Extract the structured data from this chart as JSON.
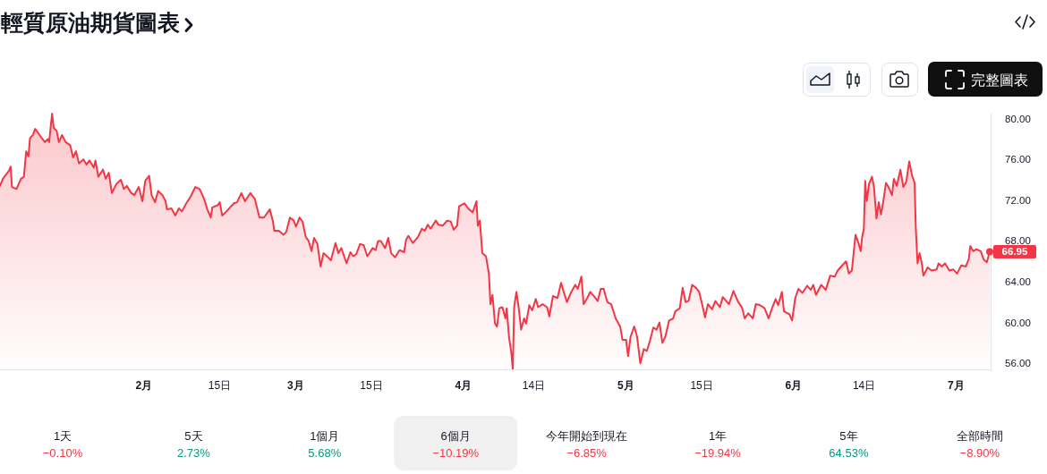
{
  "chart_data": [
    {
      "type": "area",
      "title": "輕質原油期貨圖表",
      "x": [
        "--01-05T10:00",
        "--01-05T23:00",
        "--01-07T02:00",
        "--01-07T09:00",
        "--01-07T15:00",
        "--01-08T11:00",
        "--01-09T07:00",
        "--01-09T20:00",
        "--01-10T06:00",
        "--01-10T16:00",
        "--01-10T23:00",
        "--01-11T12:00",
        "--01-11T22:00",
        "--01-12T14:00",
        "--01-13T03:00",
        "--01-13T17:00",
        "--01-14T06:00",
        "--01-14T12:00",
        "--01-14T19:00",
        "--01-15T01:00",
        "--01-15T08:00",
        "--01-15T21:00",
        "--01-16T07:00",
        "--01-16T21:00",
        "--01-17T13:00",
        "--01-18T09:00",
        "--01-18T22:00",
        "--01-19T11:00",
        "--01-20T00:00",
        "--01-20T20:00",
        "--01-21T09:00",
        "--01-21T23:00",
        "--01-22T18:00",
        "--01-23T01:00",
        "--01-23T14:00",
        "--01-24T10:00",
        "--01-24T23:00",
        "--01-25T12:00",
        "--01-26T02:00",
        "--01-26T22:00",
        "--01-27T18:00",
        "--01-28T07:00",
        "--01-28T20:00",
        "--01-29T16:00",
        "--01-30T05:00",
        "--01-31T01:00",
        "--01-31T17:00",
        "--02-01T06:00",
        "--02-01T23:00",
        "--02-02T10:00",
        "--02-03T01:00",
        "--02-03T15:00",
        "--02-04T10:00",
        "--02-05T00:00",
        "--02-05T06:00",
        "--02-06T02:00",
        "--02-06T19:00",
        "--02-07T11:00",
        "--02-08T00:00",
        "--02-08T20:00",
        "--02-09T16:00",
        "--02-10T12:00",
        "--02-11T07:00",
        "--02-12T03:00",
        "--02-12T17:00",
        "--02-13T08:00",
        "--02-13T15:00",
        "--02-14T15:00",
        "--02-15T00:00",
        "--02-15T11:00",
        "--02-16T06:00",
        "--02-17T02:00",
        "--02-17T15:00",
        "--02-18T05:00",
        "--02-19T00:00",
        "--02-19T16:00",
        "--02-20T16:00",
        "--02-21T12:00",
        "--02-22T08:00",
        "--02-23T04:00",
        "--02-24T06:00",
        "--02-24T19:00",
        "--02-25T02:00",
        "--02-25T22:00",
        "--02-26T18:00",
        "--02-27T07:00",
        "--02-27T23:00",
        "--02-28T16:00",
        "--03-01T02:00",
        "--03-01T18:00",
        "--03-02T07:00",
        "--03-02T21:00",
        "--03-03T10:00",
        "--03-03T23:00",
        "--03-04T10:00",
        "--03-05T01:00",
        "--03-05T15:00",
        "--03-06T04:00",
        "--03-07T00:00",
        "--03-07T13:00",
        "--03-08T09:00",
        "--03-08T22:00",
        "--03-09T11:00",
        "--03-10T10:00",
        "--03-11T03:00",
        "--03-11T16:00",
        "--03-12T05:00",
        "--03-12T22:00",
        "--03-13T14:00",
        "--03-14T06:00",
        "--03-15T06:00",
        "--03-15T19:00",
        "--03-16T06:00",
        "--03-16T18:00",
        "--03-17T13:00",
        "--03-18T03:00",
        "--03-18T16:00",
        "--03-19T09:00",
        "--03-20T05:00",
        "--03-21T01:00",
        "--03-21T10:00",
        "--03-21T20:00",
        "--03-22T16:00",
        "--03-23T15:00",
        "--03-24T08:00",
        "--03-24T21:00",
        "--03-25T10:00",
        "--03-25T23:00",
        "--03-26T22:00",
        "--03-27T09:00",
        "--03-28T04:00",
        "--03-29T00:00",
        "--03-29T16:00",
        "--03-30T05:00",
        "--03-30T20:00",
        "--03-31T05:00",
        "--04-01T05:00",
        "--04-01T21:00",
        "--04-02T17:00",
        "--04-03T10:00",
        "--04-03T16:00",
        "--04-04T01:00",
        "--04-04T12:00",
        "--04-05T04:00",
        "--04-05T17:00",
        "--04-06T00:00",
        "--04-06T09:00",
        "--04-06T20:00",
        "--04-07T05:00",
        "--04-07T15:00",
        "--04-08T05:00",
        "--04-08T18:00",
        "--04-09T00:00",
        "--04-09T10:00",
        "--04-09T20:00",
        "--04-10T03:00",
        "--04-10T09:00",
        "--04-10T19:00",
        "--04-11T05:00",
        "--04-11T16:00",
        "--04-12T05:00",
        "--04-12T14:00",
        "--04-13T04:00",
        "--04-13T17:00",
        "--04-14T09:00",
        "--04-14T19:00",
        "--04-15T15:00",
        "--04-16T11:00",
        "--04-16T21:00",
        "--04-17T13:00",
        "--04-18T09:00",
        "--04-19T01:00",
        "--04-19T14:00",
        "--04-20T03:00",
        "--04-20T20:00",
        "--04-21T16:00",
        "--04-22T03:00",
        "--04-22T19:00",
        "--04-23T05:00",
        "--04-23T21:00",
        "--04-24T10:00",
        "--04-25T02:00",
        "--04-25T19:00",
        "--04-26T09:00",
        "--04-26T22:00",
        "--04-27T14:00",
        "--04-28T07:00",
        "--04-29T03:00",
        "--04-29T23:00",
        "--04-30T09:00",
        "--05-01T01:00",
        "--05-01T10:00",
        "--05-01T21:00",
        "--05-02T13:00",
        "--05-03T02:00",
        "--05-03T16:00",
        "--05-04T08:00",
        "--05-04T21:00",
        "--05-05T11:00",
        "--05-06T02:00",
        "--05-06T16:00",
        "--05-07T05:00",
        "--05-07T18:00",
        "--05-08T07:00",
        "--05-09T00:00",
        "--05-09T18:00",
        "--05-10T03:00",
        "--05-10T23:00",
        "--05-11T12:00",
        "--05-12T01:00",
        "--05-12T14:00",
        "--05-13T06:00",
        "--05-13T23:00",
        "--05-14T13:00",
        "--05-15T02:00",
        "--05-15T15:00",
        "--05-16T04:00",
        "--05-16T22:00",
        "--05-17T13:00",
        "--05-18T09:00",
        "--05-18T22:00",
        "--05-20T01:00",
        "--05-20T21:00",
        "--05-21T16:00",
        "--05-22T12:00",
        "--05-22T23:00",
        "--05-23T15:00",
        "--05-24T11:00",
        "--05-25T00:00",
        "--05-25T19:00",
        "--05-26T15:00",
        "--05-27T09:00",
        "--05-28T00:00",
        "--05-28T16:00",
        "--05-29T03:00",
        "--05-29T20:00",
        "--05-30T05:00",
        "--05-31T05:00",
        "--05-31T17:00",
        "--06-01T07:00",
        "--06-01T21:00",
        "--06-02T15:00",
        "--06-03T12:00",
        "--06-04T04:00",
        "--06-04T15:00",
        "--06-05T03:00",
        "--06-06T02:00",
        "--06-06T22:00",
        "--06-07T18:00",
        "--06-08T14:00",
        "--06-09T03:00",
        "--06-09T23:00",
        "--06-10T16:00",
        "--06-11T05:00",
        "--06-11T18:00",
        "--06-12T10:00",
        "--06-12T23:00",
        "--06-13T09:00",
        "--06-13T15:00",
        "--06-13T23:00",
        "--06-14T05:00",
        "--06-14T12:00",
        "--06-14T22:00",
        "--06-15T11:00",
        "--06-15T20:00",
        "--06-16T07:00",
        "--06-16T17:00",
        "--06-17T03:00",
        "--06-17T12:00",
        "--06-18T01:00",
        "--06-18T12:00",
        "--06-19T04:00",
        "--06-19T12:00",
        "--06-20T01:00",
        "--06-20T17:00",
        "--06-21T06:00",
        "--06-21T19:00",
        "--06-22T08:00",
        "--06-22T21:00",
        "--06-23T08:00",
        "--06-23T13:00",
        "--06-23T21:00",
        "--06-24T06:00",
        "--06-24T16:00",
        "--06-24T23:00",
        "--06-25T18:00",
        "--06-26T11:00",
        "--06-27T10:00",
        "--06-27T18:00",
        "--06-28T09:00",
        "--06-28T23:00",
        "--06-29T18:00",
        "--06-30T12:00",
        "--07-01T04:00",
        "--07-01T23:00",
        "--07-02T19:00",
        "--07-03T08:00",
        "--07-03T15:00",
        "--07-04T04:00",
        "--07-04T18:00",
        "--07-05T13:00",
        "--07-06T02:00",
        "--07-06T16:00",
        "--07-07T05:00"
      ],
      "series": [
        {
          "color": "#f23645",
          "values": [
            73.4,
            74.1,
            74.9,
            75.3,
            73.3,
            73.1,
            74.1,
            74.3,
            76.8,
            76.3,
            78.1,
            78.4,
            79.0,
            78.5,
            78.1,
            77.7,
            78.0,
            77.7,
            79.3,
            80.5,
            79.1,
            78.8,
            77.7,
            78.4,
            77.7,
            77.4,
            76.2,
            76.8,
            75.6,
            76.0,
            75.5,
            75.9,
            75.2,
            75.9,
            74.3,
            75.0,
            74.1,
            74.7,
            72.7,
            73.6,
            74.0,
            73.1,
            73.4,
            72.7,
            72.5,
            73.3,
            71.9,
            73.9,
            74.4,
            72.5,
            71.8,
            72.9,
            72.5,
            71.9,
            71.1,
            71.2,
            70.5,
            71.2,
            70.9,
            71.7,
            72.4,
            73.3,
            73.1,
            72.1,
            71.1,
            70.3,
            71.3,
            71.5,
            71.8,
            70.5,
            70.9,
            71.4,
            71.7,
            71.8,
            72.7,
            71.9,
            72.7,
            72.1,
            70.3,
            70.3,
            71.1,
            70.0,
            69.0,
            69.0,
            68.6,
            68.9,
            70.3,
            70.0,
            69.4,
            70.3,
            69.9,
            68.4,
            68.0,
            67.0,
            68.3,
            67.7,
            65.5,
            66.8,
            66.4,
            66.1,
            67.8,
            66.8,
            67.3,
            65.8,
            66.9,
            66.5,
            66.7,
            67.7,
            67.6,
            66.5,
            67.3,
            67.1,
            68.0,
            68.0,
            67.3,
            68.3,
            66.8,
            66.4,
            67.1,
            66.9,
            68.1,
            68.5,
            67.8,
            68.4,
            69.2,
            69.0,
            69.6,
            69.2,
            70.0,
            69.6,
            69.5,
            70.0,
            69.9,
            69.1,
            69.5,
            71.4,
            71.7,
            71.2,
            70.8,
            71.9,
            69.5,
            70.0,
            66.8,
            66.5,
            64.8,
            61.8,
            62.7,
            59.9,
            59.6,
            61.4,
            61.5,
            60.4,
            61.4,
            58.6,
            57.1,
            55.4,
            61.5,
            63.0,
            61.5,
            59.3,
            60.4,
            59.9,
            61.7,
            61.2,
            62.3,
            61.5,
            61.8,
            61.5,
            60.6,
            62.6,
            62.4,
            63.9,
            62.9,
            62.0,
            62.9,
            63.7,
            63.3,
            64.5,
            61.8,
            62.4,
            63.0,
            62.6,
            62.1,
            63.3,
            63.3,
            62.0,
            61.8,
            60.4,
            59.6,
            58.3,
            58.3,
            56.7,
            58.6,
            59.6,
            58.6,
            56.0,
            57.4,
            57.2,
            58.2,
            59.5,
            59.3,
            60.0,
            58.0,
            58.6,
            60.2,
            60.4,
            61.1,
            61.4,
            63.4,
            62.0,
            62.1,
            63.7,
            63.4,
            63.0,
            61.8,
            60.5,
            61.8,
            61.3,
            62.1,
            61.5,
            62.5,
            61.8,
            63.1,
            62.1,
            61.4,
            60.4,
            60.9,
            60.4,
            61.8,
            61.7,
            61.4,
            60.4,
            61.4,
            62.3,
            61.7,
            63.0,
            61.1,
            60.8,
            60.2,
            62.4,
            63.3,
            62.9,
            63.6,
            63.2,
            63.7,
            62.7,
            63.7,
            63.2,
            64.6,
            64.5,
            65.1,
            65.6,
            66.0,
            64.8,
            65.1,
            68.6,
            67.8,
            67.0,
            68.3,
            69.2,
            73.9,
            71.9,
            73.6,
            74.3,
            73.3,
            70.2,
            71.8,
            70.6,
            71.7,
            73.7,
            73.3,
            72.5,
            74.1,
            73.4,
            75.0,
            73.3,
            73.8,
            75.8,
            74.4,
            73.7,
            69.5,
            65.8,
            66.8,
            65.8,
            64.6,
            65.4,
            65.1,
            65.2,
            65.8,
            65.5,
            65.8,
            65.1,
            65.2,
            64.8,
            65.6,
            65.5,
            66.2,
            67.5,
            67.0,
            67.2,
            67.0,
            66.2,
            65.9,
            66.95
          ]
        }
      ],
      "xlim": [
        "--01-05T10:00",
        "--07-07T05:00"
      ],
      "xticks": [
        {
          "value": "--02-01",
          "label": "2月"
        },
        {
          "value": "--02-15",
          "label": "15日"
        },
        {
          "value": "--03-01",
          "label": "3月"
        },
        {
          "value": "--03-15",
          "label": "15日"
        },
        {
          "value": "--04-01",
          "label": "4月"
        },
        {
          "value": "--04-14",
          "label": "14日"
        },
        {
          "value": "--05-01",
          "label": "5月"
        },
        {
          "value": "--05-15",
          "label": "15日"
        },
        {
          "value": "--06-01",
          "label": "6月"
        },
        {
          "value": "--06-14",
          "label": "14日"
        },
        {
          "value": "--07-01",
          "label": "7月"
        }
      ],
      "ylim": [
        55.4,
        80.5
      ],
      "yticks": [
        {
          "value": 56,
          "label": "56.00"
        },
        {
          "value": 60,
          "label": "60.00"
        },
        {
          "value": 64,
          "label": "64.00"
        },
        {
          "value": 68,
          "label": "68.00"
        },
        {
          "value": 72,
          "label": "72.00"
        },
        {
          "value": 76,
          "label": "76.00"
        },
        {
          "value": 80,
          "label": "80.00"
        }
      ],
      "annotations": [
        "完整圖表",
        {
          "text": "66.95",
          "x": "--07-07T05:00",
          "y": 66.95
        }
      ]
    },
    {
      "type": "other",
      "categories": [
        "1天",
        "5天",
        "1個月",
        "6個月",
        "今年開始到現在",
        "1年",
        "5年",
        "全部時間"
      ],
      "value_labels": [
        "−0.10%",
        "2.73%",
        "5.68%",
        "−10.19%",
        "−6.85%",
        "−19.94%",
        "64.53%",
        "−8.90%"
      ],
      "colors": [
        "#f23645",
        "#089981",
        "#089981",
        "#f23645",
        "#f23645",
        "#f23645",
        "#089981",
        "#f23645"
      ]
    }
  ]
}
